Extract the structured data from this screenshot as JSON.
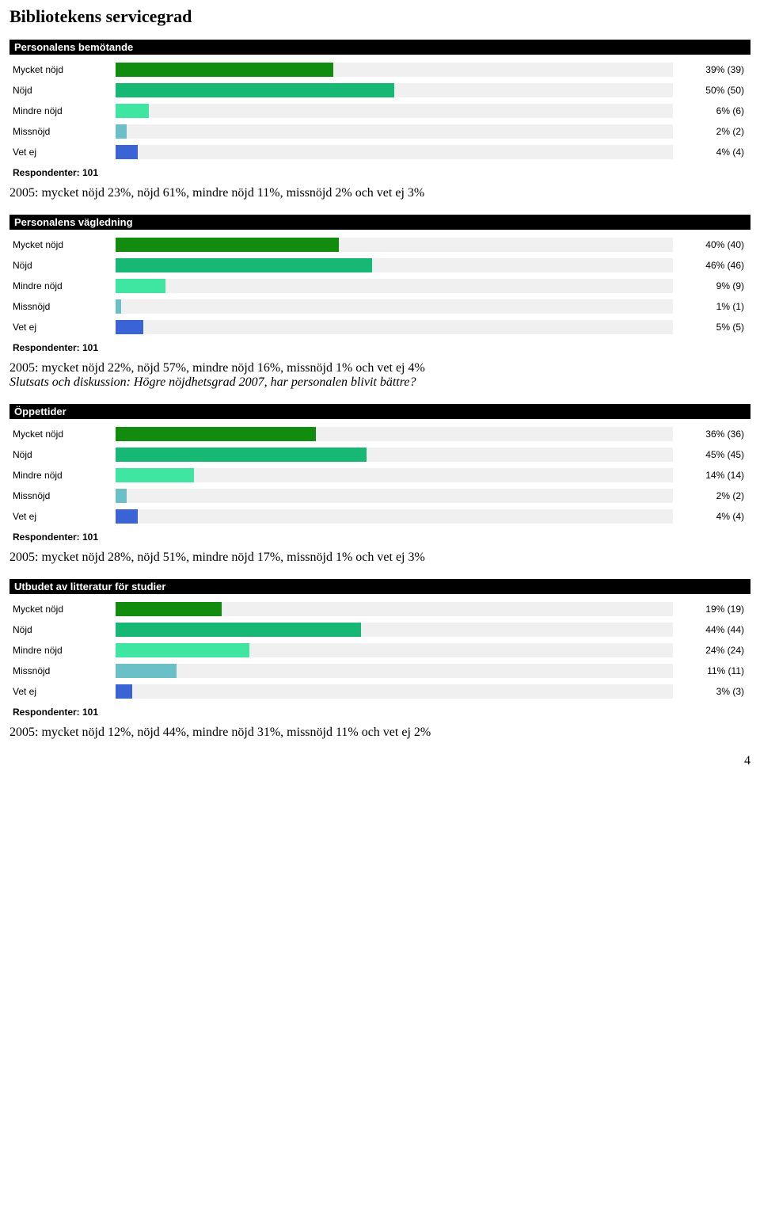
{
  "main_title": "Bibliotekens servicegrad",
  "page_number": "4",
  "bar_colors": [
    "#118c0e",
    "#17b873",
    "#3fe6a1",
    "#6ac0c6",
    "#3a63d6"
  ],
  "track_color": "#f0f0f0",
  "charts": [
    {
      "title": "Personalens bemötande",
      "respondents": "Respondenter: 101",
      "rows": [
        {
          "label": "Mycket nöjd",
          "pct": 39,
          "count": 39,
          "text": "39% (39)"
        },
        {
          "label": "Nöjd",
          "pct": 50,
          "count": 50,
          "text": "50% (50)"
        },
        {
          "label": "Mindre nöjd",
          "pct": 6,
          "count": 6,
          "text": "6% (6)"
        },
        {
          "label": "Missnöjd",
          "pct": 2,
          "count": 2,
          "text": "2% (2)"
        },
        {
          "label": "Vet ej",
          "pct": 4,
          "count": 4,
          "text": "4% (4)"
        }
      ],
      "caption": "2005: mycket nöjd 23%, nöjd 61%, mindre nöjd 11%, missnöjd 2% och vet ej 3%",
      "caption_italic": ""
    },
    {
      "title": "Personalens vägledning",
      "respondents": "Respondenter: 101",
      "rows": [
        {
          "label": "Mycket nöjd",
          "pct": 40,
          "count": 40,
          "text": "40% (40)"
        },
        {
          "label": "Nöjd",
          "pct": 46,
          "count": 46,
          "text": "46% (46)"
        },
        {
          "label": "Mindre nöjd",
          "pct": 9,
          "count": 9,
          "text": "9% (9)"
        },
        {
          "label": "Missnöjd",
          "pct": 1,
          "count": 1,
          "text": "1% (1)"
        },
        {
          "label": "Vet ej",
          "pct": 5,
          "count": 5,
          "text": "5% (5)"
        }
      ],
      "caption": "2005: mycket nöjd 22%, nöjd 57%, mindre nöjd 16%, missnöjd 1% och vet ej 4%",
      "caption_italic": "Slutsats och diskussion: Högre nöjdhetsgrad 2007, har personalen blivit bättre?"
    },
    {
      "title": "Öppettider",
      "respondents": "Respondenter: 101",
      "rows": [
        {
          "label": "Mycket nöjd",
          "pct": 36,
          "count": 36,
          "text": "36% (36)"
        },
        {
          "label": "Nöjd",
          "pct": 45,
          "count": 45,
          "text": "45% (45)"
        },
        {
          "label": "Mindre nöjd",
          "pct": 14,
          "count": 14,
          "text": "14% (14)"
        },
        {
          "label": "Missnöjd",
          "pct": 2,
          "count": 2,
          "text": "2% (2)"
        },
        {
          "label": "Vet ej",
          "pct": 4,
          "count": 4,
          "text": "4% (4)"
        }
      ],
      "caption": "2005: mycket nöjd 28%, nöjd 51%, mindre nöjd 17%, missnöjd 1% och vet ej 3%",
      "caption_italic": ""
    },
    {
      "title": "Utbudet av litteratur för studier",
      "respondents": "Respondenter: 101",
      "rows": [
        {
          "label": "Mycket nöjd",
          "pct": 19,
          "count": 19,
          "text": "19% (19)"
        },
        {
          "label": "Nöjd",
          "pct": 44,
          "count": 44,
          "text": "44% (44)"
        },
        {
          "label": "Mindre nöjd",
          "pct": 24,
          "count": 24,
          "text": "24% (24)"
        },
        {
          "label": "Missnöjd",
          "pct": 11,
          "count": 11,
          "text": "11% (11)"
        },
        {
          "label": "Vet ej",
          "pct": 3,
          "count": 3,
          "text": "3% (3)"
        }
      ],
      "caption": "2005: mycket nöjd 12%, nöjd 44%, mindre nöjd 31%, missnöjd 11% och vet ej 2%",
      "caption_italic": ""
    }
  ]
}
